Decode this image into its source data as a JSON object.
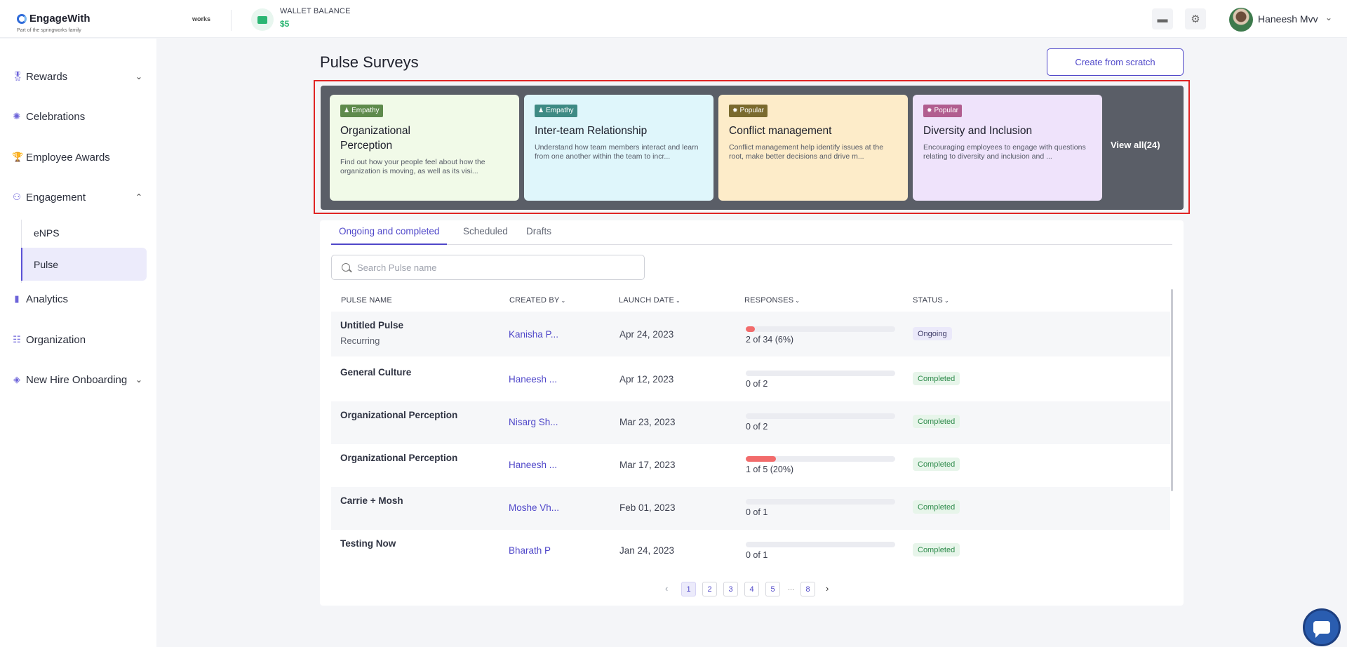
{
  "topbar": {
    "brand": "EngageWith",
    "brand_sub": "Part of the springworks family",
    "works_logo": "works",
    "wallet_label": "WALLET BALANCE",
    "wallet_amount": "$5",
    "user_name": "Haneesh Mvv",
    "icons": [
      "wallet-icon",
      "card-icon",
      "gear-icon",
      "chevron-down-icon"
    ]
  },
  "sidebar": {
    "items": [
      {
        "label": "Rewards",
        "icon": "medal-icon",
        "expandable": true
      },
      {
        "label": "Celebrations",
        "icon": "party-icon",
        "expandable": false
      },
      {
        "label": "Employee Awards",
        "icon": "trophy-icon",
        "expandable": false
      },
      {
        "label": "Engagement",
        "icon": "network-icon",
        "expandable": true,
        "expanded": true
      },
      {
        "label": "Analytics",
        "icon": "bar-chart-icon",
        "expandable": false
      },
      {
        "label": "Organization",
        "icon": "people-icon",
        "expandable": false
      },
      {
        "label": "New Hire Onboarding",
        "icon": "onboarding-icon",
        "expandable": true
      }
    ],
    "sub_items": [
      {
        "label": "eNPS",
        "active": false
      },
      {
        "label": "Pulse",
        "active": true
      }
    ]
  },
  "page": {
    "title": "Pulse Surveys",
    "create_button": "Create from scratch"
  },
  "templates": {
    "cards": [
      {
        "badge": "Empathy",
        "title": "Organizational Perception",
        "desc": "Find out how your people feel about how the organization is moving, as well as its visi...",
        "bg": "#f1fae8",
        "badge_color": "#5e8a4c"
      },
      {
        "badge": "Empathy",
        "title": "Inter-team Relationship",
        "desc": "Understand how team members interact and learn from one another within the team to incr...",
        "bg": "#dff6fb",
        "badge_color": "#3e8a84"
      },
      {
        "badge": "Popular",
        "title": "Conflict management",
        "desc": "Conflict management help identify issues at the root, make better decisions and drive m...",
        "bg": "#fdecc9",
        "badge_color": "#7a6a2e"
      },
      {
        "badge": "Popular",
        "title": "Diversity and Inclusion",
        "desc": "Encouraging employees to engage with questions relating to diversity and inclusion and ...",
        "bg": "#efe3fb",
        "badge_color": "#b15d8f"
      }
    ],
    "view_all": "View all(24)"
  },
  "tabs": [
    {
      "label": "Ongoing and completed",
      "active": true
    },
    {
      "label": "Scheduled",
      "active": false
    },
    {
      "label": "Drafts",
      "active": false
    }
  ],
  "search": {
    "placeholder": "Search Pulse name",
    "value": ""
  },
  "table": {
    "columns": [
      "PULSE NAME",
      "CREATED BY",
      "LAUNCH DATE",
      "RESPONSES",
      "STATUS"
    ],
    "rows": [
      {
        "name": "Untitled Pulse",
        "sub": "Recurring",
        "created_by": "Kanisha P...",
        "date": "Apr 24, 2023",
        "responses": "2 of 34 (6%)",
        "progress": 0.06,
        "status": "Ongoing"
      },
      {
        "name": "General Culture",
        "sub": "",
        "created_by": "Haneesh ...",
        "date": "Apr 12, 2023",
        "responses": "0 of 2",
        "progress": 0,
        "status": "Completed"
      },
      {
        "name": "Organizational Perception",
        "sub": "",
        "created_by": "Nisarg Sh...",
        "date": "Mar 23, 2023",
        "responses": "0 of 2",
        "progress": 0,
        "status": "Completed"
      },
      {
        "name": "Organizational Perception",
        "sub": "",
        "created_by": "Haneesh ...",
        "date": "Mar 17, 2023",
        "responses": "1 of 5 (20%)",
        "progress": 0.2,
        "status": "Completed"
      },
      {
        "name": "Carrie + Mosh",
        "sub": "",
        "created_by": "Moshe Vh...",
        "date": "Feb 01, 2023",
        "responses": "0 of 1",
        "progress": 0,
        "status": "Completed"
      },
      {
        "name": "Testing Now",
        "sub": "",
        "created_by": "Bharath P",
        "date": "Jan 24, 2023",
        "responses": "0 of 1",
        "progress": 0,
        "status": "Completed"
      }
    ]
  },
  "pagination": {
    "pages": [
      "1",
      "2",
      "3",
      "4",
      "5"
    ],
    "ellipsis": "...",
    "last_page": "8",
    "current": "1"
  }
}
